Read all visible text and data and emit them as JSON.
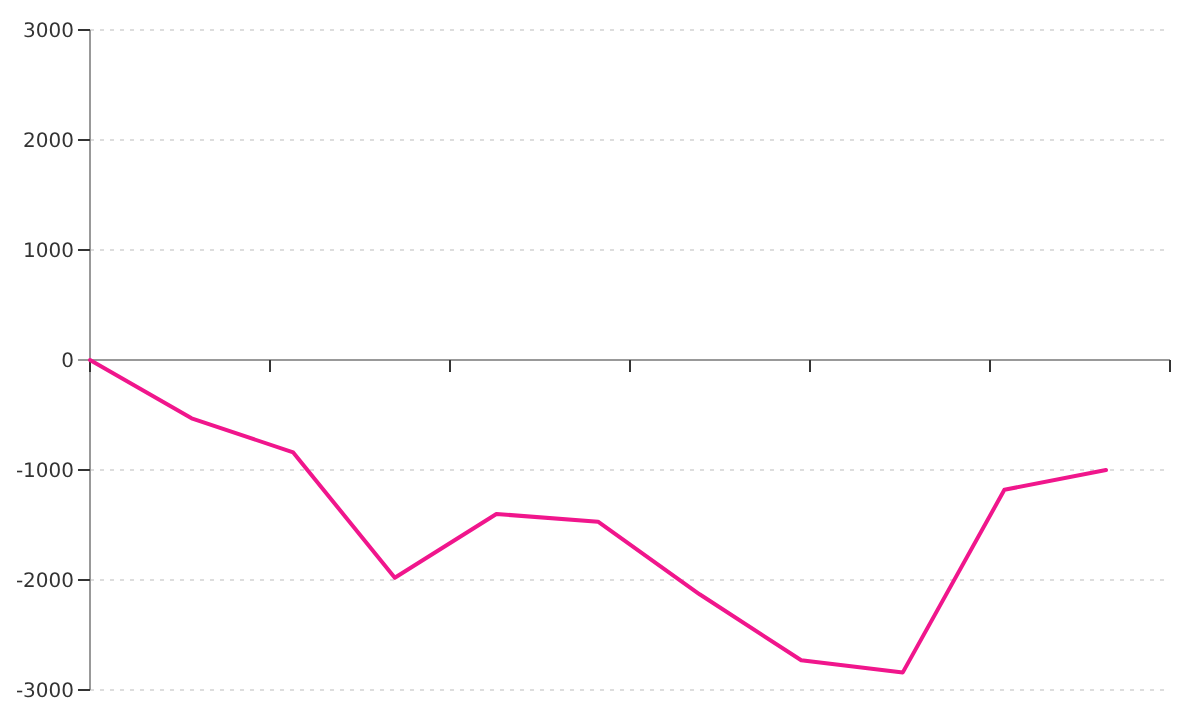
{
  "chart_data": {
    "type": "line",
    "categories": [
      null,
      null,
      null,
      null,
      null,
      null,
      null,
      null,
      null,
      null,
      null
    ],
    "series": [
      {
        "color": "#f0168c",
        "values": [
          0,
          -530,
          -840,
          -1980,
          -1400,
          -1470,
          -2130,
          -2730,
          -2840,
          -1180,
          -1000
        ]
      }
    ],
    "ylim": [
      -3000,
      3000
    ],
    "yticks": [
      -3000,
      -2000,
      -1000,
      0,
      1000,
      2000,
      3000
    ],
    "grid": "y",
    "tick_labels": "y",
    "marker": "none",
    "line_style": "solid"
  }
}
